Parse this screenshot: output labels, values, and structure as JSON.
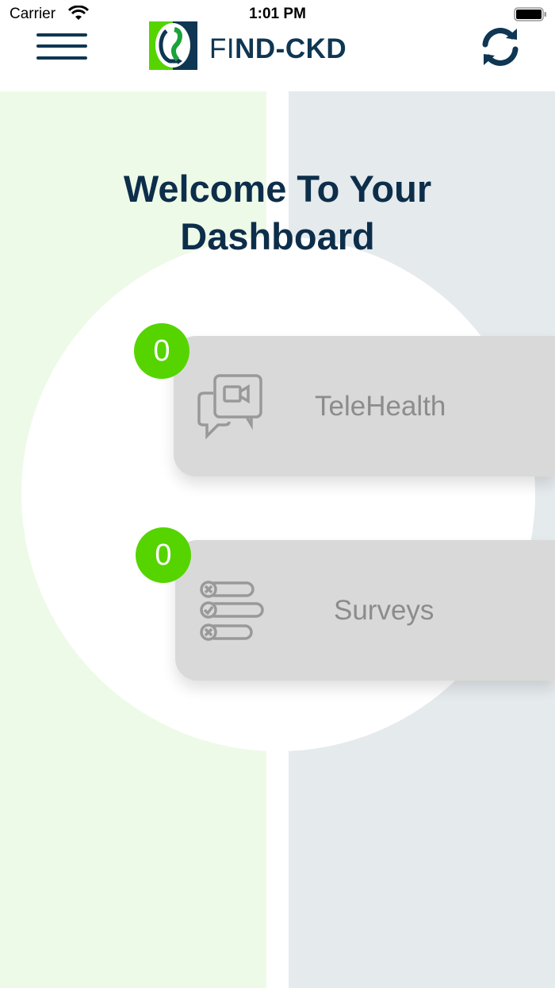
{
  "status_bar": {
    "carrier": "Carrier",
    "time": "1:01 PM"
  },
  "header": {
    "brand_prefix": "FI",
    "brand_suffix": "ND-CKD",
    "menu_icon": "hamburger-icon",
    "refresh_icon": "refresh-icon"
  },
  "colors": {
    "brand_dark": "#0f3652",
    "brand_green": "#55d400",
    "card": "#d9d9d9",
    "left_panel": "#eefae8",
    "right_panel": "#e5eaed"
  },
  "dashboard": {
    "title_line1": "Welcome To Your",
    "title_line2": "Dashboard",
    "cards": [
      {
        "label": "TeleHealth",
        "count": "0",
        "icon": "video-chat-icon"
      },
      {
        "label": "Surveys",
        "count": "0",
        "icon": "survey-list-icon"
      }
    ]
  }
}
